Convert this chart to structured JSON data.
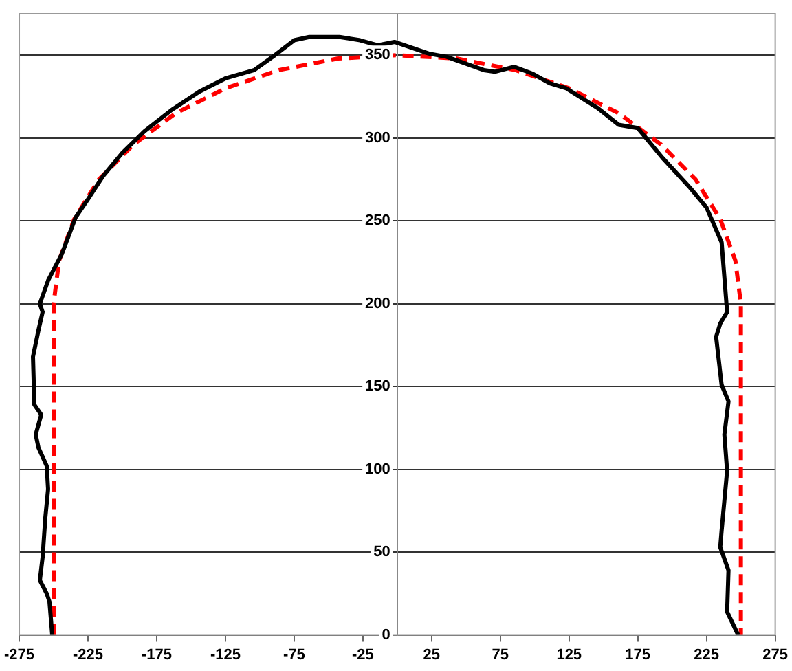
{
  "chart_data": {
    "type": "line",
    "xlim": [
      -275,
      275
    ],
    "xticks": [
      -275,
      -225,
      -175,
      -125,
      -75,
      -25,
      25,
      75,
      125,
      175,
      225,
      275
    ],
    "ylim": [
      0,
      375
    ],
    "yticks": [
      0,
      50,
      100,
      150,
      200,
      250,
      300,
      350
    ],
    "grid": "y",
    "legend": false,
    "marker": "none",
    "series": [
      {
        "color": "#000000",
        "line_style": "solid",
        "x": [
          -251,
          -253,
          -255,
          -260,
          -258,
          -256,
          -254,
          -255,
          -261,
          -263,
          -259,
          -264,
          -265,
          -261,
          -258,
          -260,
          -254,
          -244,
          -234,
          -225,
          -214,
          -200,
          -184,
          -164,
          -144,
          -125,
          -104,
          -89,
          -75,
          -64,
          -42,
          -27,
          -14,
          -2,
          23,
          36,
          63,
          71,
          85,
          98,
          111,
          123,
          146,
          161,
          175,
          193,
          213,
          225,
          236,
          240,
          235,
          232,
          236,
          241,
          238,
          240,
          236,
          235,
          241,
          240,
          248
        ],
        "values": [
          0,
          20,
          25,
          33,
          47,
          71,
          88,
          102,
          113,
          121,
          133,
          139,
          168,
          184,
          195,
          200,
          214,
          230,
          252,
          263,
          277,
          291,
          304,
          317,
          328,
          336,
          341,
          350,
          359,
          361,
          361,
          359,
          356,
          358,
          351,
          349,
          341,
          340,
          343,
          339,
          333,
          330,
          318,
          308,
          306,
          288,
          270,
          258,
          237,
          195,
          188,
          180,
          151,
          141,
          121,
          99,
          63,
          53,
          39,
          14,
          0
        ]
      },
      {
        "color": "#ff0000",
        "line_style": "dashed",
        "x": [
          -250,
          -250,
          -246,
          -235,
          -217,
          -192,
          -161,
          -125,
          -86,
          -43,
          0,
          43,
          86,
          125,
          161,
          192,
          217,
          235,
          246,
          250,
          250
        ],
        "values": [
          0,
          200,
          226,
          251,
          275,
          296,
          315,
          330,
          341,
          348,
          350,
          348,
          341,
          330,
          315,
          296,
          275,
          251,
          226,
          200,
          0
        ]
      }
    ]
  }
}
